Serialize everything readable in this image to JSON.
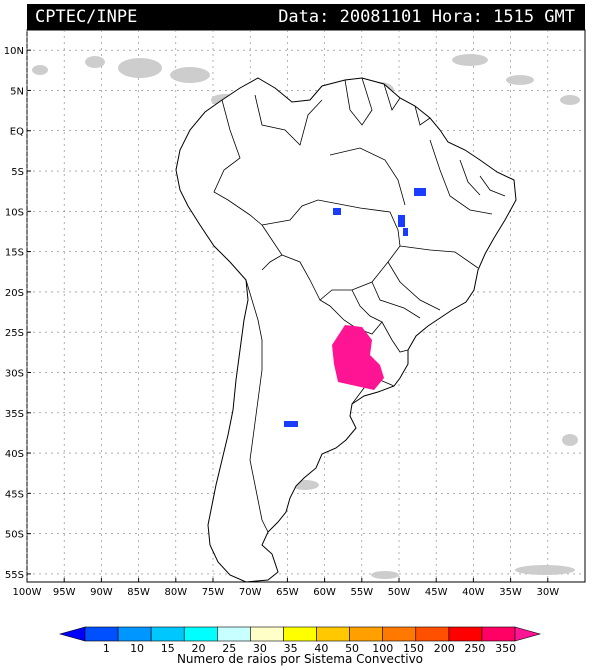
{
  "header": {
    "source": "CPTEC/INPE",
    "datetime": "Data: 20081101 Hora: 1515 GMT"
  },
  "map": {
    "lat_labels": [
      "10N",
      "5N",
      "EQ",
      "5S",
      "10S",
      "15S",
      "20S",
      "25S",
      "30S",
      "35S",
      "40S",
      "45S",
      "50S",
      "55S"
    ],
    "lat_values": [
      10,
      5,
      0,
      -5,
      -10,
      -15,
      -20,
      -25,
      -30,
      -35,
      -40,
      -45,
      -50,
      -55
    ],
    "lon_labels": [
      "100W",
      "95W",
      "90W",
      "85W",
      "80W",
      "75W",
      "70W",
      "65W",
      "60W",
      "55W",
      "50W",
      "45W",
      "40W",
      "35W",
      "30W"
    ],
    "lon_values": [
      -100,
      -95,
      -90,
      -85,
      -80,
      -75,
      -70,
      -65,
      -60,
      -55,
      -50,
      -45,
      -40,
      -35,
      -30
    ],
    "lat_range": [
      -56,
      12.5
    ],
    "lon_range": [
      -100,
      -25
    ],
    "land_fill": "#ffffff",
    "cloud_color": "#c8c8c8",
    "grid_color": "#808080"
  },
  "colorbar": {
    "labels": [
      "1",
      "10",
      "15",
      "20",
      "25",
      "30",
      "35",
      "40",
      "50",
      "100",
      "150",
      "200",
      "250",
      "350"
    ],
    "colors": [
      "#0000ff",
      "#0050ff",
      "#0096ff",
      "#00c8ff",
      "#00ffff",
      "#c8ffff",
      "#ffffc8",
      "#ffff00",
      "#ffc800",
      "#ffa000",
      "#ff7800",
      "#ff5000",
      "#ff0000",
      "#ff0064",
      "#ff1493"
    ],
    "title": "Numero de raios por Sistema Convectivo"
  },
  "lightning_systems": [
    {
      "color": "#ff1493"
    },
    {
      "color": "#1a3cff"
    },
    {
      "color": "#1a3cff"
    },
    {
      "color": "#1a3cff"
    },
    {
      "color": "#1a3cff"
    },
    {
      "color": "#1a3cff"
    }
  ]
}
